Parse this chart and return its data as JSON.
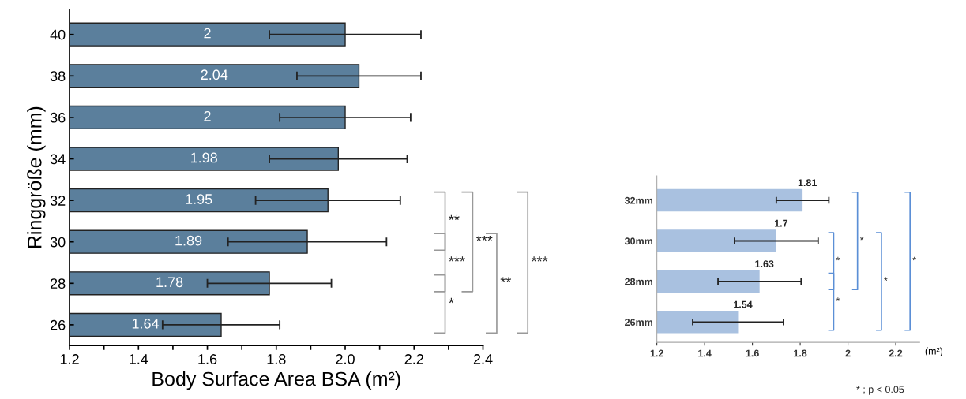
{
  "chart_data": [
    {
      "type": "bar",
      "orientation": "horizontal",
      "categories": [
        "40",
        "38",
        "36",
        "34",
        "32",
        "30",
        "28",
        "26"
      ],
      "values": [
        2,
        2.04,
        2,
        1.98,
        1.95,
        1.89,
        1.78,
        1.64
      ],
      "errors": [
        0.22,
        0.18,
        0.19,
        0.2,
        0.21,
        0.23,
        0.18,
        0.17
      ],
      "color": "#5b7f9c",
      "data_labels": true,
      "xlabel": "Body Surface Area BSA (m²)",
      "ylabel": "Ringgröße (mm)",
      "xlim": [
        1.2,
        2.4
      ],
      "xticks": [
        1.2,
        {
          "value": 1.3,
          "label": null
        },
        1.4,
        {
          "value": 1.5,
          "label": null
        },
        1.6,
        {
          "value": 1.7,
          "label": null
        },
        1.8,
        {
          "value": 1.9,
          "label": null
        },
        {
          "value": 2.0,
          "label": "2.0"
        },
        {
          "value": 2.1,
          "label": null
        },
        2.2,
        {
          "value": 2.3,
          "label": null
        },
        2.4
      ],
      "annotations": [
        "**",
        "***",
        "*",
        "***",
        "**",
        "***"
      ],
      "grid": false,
      "legend": false
    },
    {
      "type": "bar",
      "orientation": "horizontal",
      "categories": [
        "32mm",
        "30mm",
        "28mm",
        "26mm"
      ],
      "values": [
        1.81,
        1.7,
        1.63,
        1.54
      ],
      "errors": [
        0.11,
        0.175,
        0.174,
        0.19
      ],
      "color": "#a9c1e0",
      "data_labels": true,
      "xlabel": "(m²)",
      "xlim": [
        1.2,
        2.3
      ],
      "xticks": [
        1.2,
        1.4,
        1.6,
        1.8,
        2,
        2.2
      ],
      "annotations": [
        "*",
        "*",
        "*",
        "*",
        "*",
        "* ; p < 0.05"
      ],
      "grid": false,
      "legend": false
    }
  ]
}
